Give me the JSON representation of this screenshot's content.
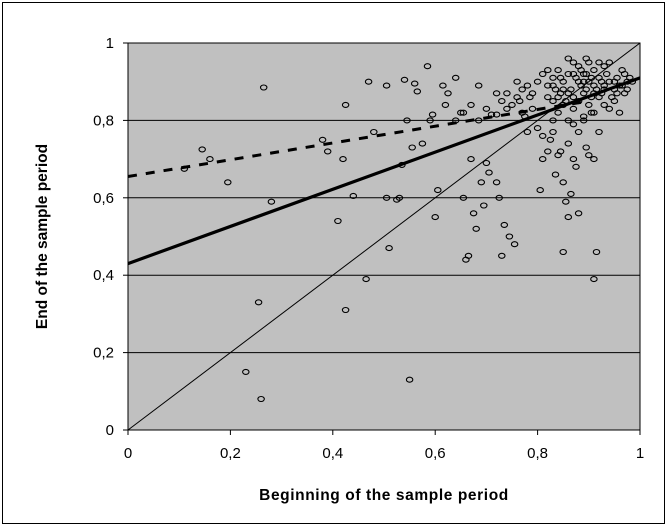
{
  "chart_data": {
    "type": "scatter",
    "title": "",
    "xlabel": "Beginning of the sample period",
    "ylabel": "End of the sample period",
    "xlim": [
      0,
      1
    ],
    "ylim": [
      0,
      1
    ],
    "xticks": [
      "0",
      "0,2",
      "0,4",
      "0,6",
      "0,8",
      "1"
    ],
    "yticks": [
      "0",
      "0,2",
      "0,4",
      "0,6",
      "0,8",
      "1"
    ],
    "xtick_values": [
      0,
      0.2,
      0.4,
      0.6,
      0.8,
      1
    ],
    "ytick_values": [
      0,
      0.2,
      0.4,
      0.6,
      0.8,
      1
    ],
    "horizontal_gridlines": true,
    "vertical_gridlines": false,
    "legend": "none",
    "plot_background": "#c0c0c0",
    "marker": "hollow-ellipse",
    "lines": [
      {
        "style": "thin-solid",
        "x": [
          0,
          1
        ],
        "y": [
          0,
          1
        ]
      },
      {
        "style": "thick-solid",
        "x": [
          0,
          1
        ],
        "y": [
          0.43,
          0.91
        ]
      },
      {
        "style": "dashed",
        "x": [
          0,
          0.9
        ],
        "y": [
          0.655,
          0.85
        ]
      }
    ],
    "points": [
      [
        0.11,
        0.675
      ],
      [
        0.145,
        0.725
      ],
      [
        0.16,
        0.7
      ],
      [
        0.195,
        0.64
      ],
      [
        0.265,
        0.885
      ],
      [
        0.28,
        0.59
      ],
      [
        0.38,
        0.75
      ],
      [
        0.39,
        0.72
      ],
      [
        0.41,
        0.54
      ],
      [
        0.42,
        0.7
      ],
      [
        0.425,
        0.84
      ],
      [
        0.44,
        0.605
      ],
      [
        0.47,
        0.9
      ],
      [
        0.48,
        0.77
      ],
      [
        0.505,
        0.89
      ],
      [
        0.505,
        0.6
      ],
      [
        0.51,
        0.47
      ],
      [
        0.525,
        0.595
      ],
      [
        0.53,
        0.6
      ],
      [
        0.535,
        0.685
      ],
      [
        0.54,
        0.905
      ],
      [
        0.545,
        0.8
      ],
      [
        0.555,
        0.73
      ],
      [
        0.56,
        0.895
      ],
      [
        0.565,
        0.875
      ],
      [
        0.575,
        0.74
      ],
      [
        0.585,
        0.94
      ],
      [
        0.59,
        0.8
      ],
      [
        0.595,
        0.815
      ],
      [
        0.6,
        0.55
      ],
      [
        0.605,
        0.62
      ],
      [
        0.625,
        0.87
      ],
      [
        0.64,
        0.8
      ],
      [
        0.65,
        0.82
      ],
      [
        0.655,
        0.6
      ],
      [
        0.66,
        0.44
      ],
      [
        0.665,
        0.45
      ],
      [
        0.67,
        0.7
      ],
      [
        0.675,
        0.56
      ],
      [
        0.68,
        0.52
      ],
      [
        0.685,
        0.89
      ],
      [
        0.69,
        0.64
      ],
      [
        0.695,
        0.58
      ],
      [
        0.7,
        0.69
      ],
      [
        0.705,
        0.665
      ],
      [
        0.71,
        0.815
      ],
      [
        0.72,
        0.815
      ],
      [
        0.72,
        0.87
      ],
      [
        0.72,
        0.64
      ],
      [
        0.725,
        0.6
      ],
      [
        0.73,
        0.45
      ],
      [
        0.735,
        0.53
      ],
      [
        0.74,
        0.83
      ],
      [
        0.745,
        0.5
      ],
      [
        0.75,
        0.84
      ],
      [
        0.755,
        0.48
      ],
      [
        0.76,
        0.9
      ],
      [
        0.765,
        0.85
      ],
      [
        0.77,
        0.88
      ],
      [
        0.775,
        0.81
      ],
      [
        0.78,
        0.77
      ],
      [
        0.785,
        0.86
      ],
      [
        0.79,
        0.83
      ],
      [
        0.8,
        0.78
      ],
      [
        0.805,
        0.62
      ],
      [
        0.81,
        0.76
      ],
      [
        0.82,
        0.86
      ],
      [
        0.825,
        0.75
      ],
      [
        0.83,
        0.8
      ],
      [
        0.835,
        0.66
      ],
      [
        0.84,
        0.71
      ],
      [
        0.845,
        0.72
      ],
      [
        0.85,
        0.64
      ],
      [
        0.855,
        0.59
      ],
      [
        0.86,
        0.55
      ],
      [
        0.865,
        0.61
      ],
      [
        0.87,
        0.7
      ],
      [
        0.875,
        0.68
      ],
      [
        0.88,
        0.56
      ],
      [
        0.89,
        0.8
      ],
      [
        0.895,
        0.73
      ],
      [
        0.9,
        0.71
      ],
      [
        0.905,
        0.82
      ],
      [
        0.91,
        0.7
      ],
      [
        0.915,
        0.46
      ],
      [
        0.92,
        0.77
      ],
      [
        0.85,
        0.46
      ],
      [
        0.91,
        0.39
      ],
      [
        0.23,
        0.15
      ],
      [
        0.255,
        0.33
      ],
      [
        0.26,
        0.08
      ],
      [
        0.425,
        0.31
      ],
      [
        0.465,
        0.39
      ],
      [
        0.55,
        0.13
      ],
      [
        0.8,
        0.9
      ],
      [
        0.81,
        0.92
      ],
      [
        0.82,
        0.89
      ],
      [
        0.83,
        0.91
      ],
      [
        0.84,
        0.93
      ],
      [
        0.845,
        0.87
      ],
      [
        0.85,
        0.9
      ],
      [
        0.855,
        0.85
      ],
      [
        0.86,
        0.92
      ],
      [
        0.865,
        0.88
      ],
      [
        0.87,
        0.86
      ],
      [
        0.875,
        0.91
      ],
      [
        0.88,
        0.94
      ],
      [
        0.885,
        0.89
      ],
      [
        0.89,
        0.87
      ],
      [
        0.895,
        0.92
      ],
      [
        0.9,
        0.9
      ],
      [
        0.905,
        0.86
      ],
      [
        0.91,
        0.93
      ],
      [
        0.915,
        0.88
      ],
      [
        0.92,
        0.91
      ],
      [
        0.925,
        0.87
      ],
      [
        0.93,
        0.89
      ],
      [
        0.935,
        0.92
      ],
      [
        0.94,
        0.9
      ],
      [
        0.945,
        0.86
      ],
      [
        0.95,
        0.88
      ],
      [
        0.955,
        0.91
      ],
      [
        0.96,
        0.89
      ],
      [
        0.965,
        0.93
      ],
      [
        0.97,
        0.87
      ],
      [
        0.975,
        0.9
      ],
      [
        0.83,
        0.85
      ],
      [
        0.84,
        0.82
      ],
      [
        0.85,
        0.84
      ],
      [
        0.86,
        0.8
      ],
      [
        0.87,
        0.83
      ],
      [
        0.88,
        0.85
      ],
      [
        0.89,
        0.81
      ],
      [
        0.9,
        0.84
      ],
      [
        0.91,
        0.82
      ],
      [
        0.92,
        0.86
      ],
      [
        0.93,
        0.84
      ],
      [
        0.94,
        0.83
      ],
      [
        0.95,
        0.85
      ],
      [
        0.96,
        0.82
      ],
      [
        0.86,
        0.96
      ],
      [
        0.895,
        0.96
      ],
      [
        0.92,
        0.95
      ],
      [
        0.94,
        0.95
      ],
      [
        0.82,
        0.93
      ],
      [
        0.835,
        0.88
      ],
      [
        0.845,
        0.91
      ],
      [
        0.87,
        0.95
      ],
      [
        0.88,
        0.9
      ],
      [
        0.885,
        0.93
      ],
      [
        0.895,
        0.88
      ],
      [
        0.905,
        0.91
      ],
      [
        0.91,
        0.89
      ],
      [
        0.925,
        0.9
      ],
      [
        0.87,
        0.79
      ],
      [
        0.88,
        0.77
      ],
      [
        0.86,
        0.74
      ],
      [
        0.83,
        0.77
      ],
      [
        0.82,
        0.72
      ],
      [
        0.81,
        0.7
      ],
      [
        0.79,
        0.87
      ],
      [
        0.78,
        0.89
      ],
      [
        0.77,
        0.82
      ],
      [
        0.76,
        0.86
      ],
      [
        0.74,
        0.87
      ],
      [
        0.73,
        0.85
      ],
      [
        0.7,
        0.83
      ],
      [
        0.685,
        0.8
      ],
      [
        0.67,
        0.84
      ],
      [
        0.655,
        0.82
      ],
      [
        0.64,
        0.91
      ],
      [
        0.62,
        0.84
      ],
      [
        0.615,
        0.89
      ],
      [
        0.9,
        0.95
      ],
      [
        0.93,
        0.94
      ],
      [
        0.955,
        0.87
      ],
      [
        0.965,
        0.89
      ],
      [
        0.97,
        0.92
      ],
      [
        0.975,
        0.88
      ],
      [
        0.98,
        0.91
      ],
      [
        0.985,
        0.9
      ],
      [
        0.83,
        0.89
      ],
      [
        0.85,
        0.88
      ],
      [
        0.87,
        0.92
      ],
      [
        0.89,
        0.9
      ],
      [
        0.91,
        0.87
      ],
      [
        0.93,
        0.88
      ],
      [
        0.95,
        0.9
      ],
      [
        0.89,
        0.92
      ],
      [
        0.86,
        0.87
      ],
      [
        0.84,
        0.86
      ]
    ]
  }
}
